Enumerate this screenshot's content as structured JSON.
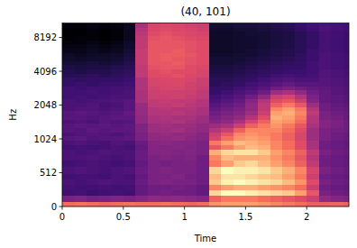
{
  "chart_data": {
    "type": "heatmap",
    "title": "(40, 101)",
    "x_label": "Time",
    "y_label": "Hz",
    "log": "y",
    "xlim": [
      0,
      2.345
    ],
    "ylim": [
      0,
      11025
    ],
    "xticks": [
      0,
      0.5,
      1,
      1.5,
      2
    ],
    "yticks": [
      0,
      512,
      1024,
      2048,
      4096,
      8192
    ],
    "x_edges": [
      0,
      0.1,
      0.2,
      0.3,
      0.4,
      0.5,
      0.6,
      0.7,
      0.8,
      0.9,
      1.0,
      1.1,
      1.2,
      1.3,
      1.4,
      1.5,
      1.6,
      1.7,
      1.8,
      1.9,
      2.0,
      2.1,
      2.2,
      2.3,
      2.345
    ],
    "y_edges": [
      0,
      83,
      166,
      250,
      333,
      416,
      499,
      583,
      666,
      749,
      832,
      915,
      999,
      1088,
      1186,
      1291,
      1407,
      1533,
      1671,
      1821,
      1984,
      2161,
      2355,
      2566,
      2796,
      3047,
      3318,
      3616,
      3940,
      4293,
      4678,
      5094,
      5551,
      6050,
      6593,
      7184,
      7822,
      8525,
      9290,
      10125,
      11025
    ],
    "cells": [
      [
        54,
        30,
        20,
        21,
        22,
        20,
        22,
        20,
        22,
        22,
        20,
        22,
        24,
        22,
        24,
        24,
        22,
        24,
        24,
        22,
        22,
        22,
        20,
        20,
        20,
        18,
        18,
        16,
        15,
        14,
        12,
        11,
        10,
        8,
        7,
        6,
        5,
        5,
        5,
        6
      ],
      [
        55,
        31,
        21,
        20,
        21,
        21,
        23,
        21,
        22,
        21,
        21,
        23,
        25,
        23,
        23,
        25,
        23,
        24,
        25,
        23,
        22,
        21,
        21,
        20,
        19,
        19,
        17,
        16,
        14,
        13,
        12,
        10,
        9,
        8,
        7,
        6,
        6,
        5,
        5,
        6
      ],
      [
        54,
        29,
        19,
        20,
        22,
        21,
        22,
        22,
        23,
        22,
        20,
        22,
        23,
        24,
        25,
        24,
        22,
        23,
        24,
        23,
        23,
        22,
        20,
        21,
        20,
        18,
        18,
        17,
        15,
        14,
        13,
        11,
        10,
        9,
        8,
        7,
        6,
        6,
        6,
        7
      ],
      [
        53,
        30,
        20,
        21,
        23,
        20,
        21,
        21,
        22,
        23,
        21,
        21,
        24,
        23,
        24,
        25,
        24,
        24,
        23,
        22,
        21,
        22,
        21,
        20,
        20,
        19,
        18,
        16,
        15,
        14,
        12,
        11,
        10,
        8,
        7,
        6,
        5,
        5,
        5,
        6
      ],
      [
        54,
        31,
        21,
        20,
        22,
        22,
        22,
        20,
        21,
        22,
        22,
        23,
        24,
        22,
        25,
        24,
        23,
        25,
        24,
        23,
        22,
        23,
        22,
        21,
        21,
        19,
        18,
        17,
        16,
        15,
        13,
        12,
        11,
        9,
        8,
        7,
        6,
        6,
        6,
        7
      ],
      [
        55,
        30,
        20,
        21,
        22,
        21,
        23,
        21,
        22,
        22,
        21,
        22,
        25,
        24,
        25,
        25,
        24,
        25,
        26,
        24,
        24,
        24,
        22,
        22,
        21,
        20,
        19,
        18,
        17,
        16,
        15,
        14,
        13,
        12,
        11,
        10,
        9,
        9,
        9,
        9
      ],
      [
        54,
        32,
        26,
        26,
        27,
        26,
        27,
        26,
        27,
        27,
        26,
        27,
        30,
        30,
        31,
        31,
        34,
        34,
        35,
        35,
        35,
        38,
        38,
        38,
        39,
        39,
        39,
        42,
        42,
        42,
        43,
        43,
        43,
        43,
        42,
        42,
        42,
        41,
        40,
        38
      ],
      [
        54,
        34,
        28,
        28,
        30,
        30,
        30,
        30,
        30,
        32,
        32,
        32,
        34,
        34,
        36,
        36,
        38,
        38,
        40,
        40,
        42,
        42,
        44,
        44,
        45,
        46,
        46,
        48,
        48,
        49,
        50,
        50,
        50,
        50,
        50,
        50,
        49,
        48,
        47,
        46
      ],
      [
        55,
        33,
        29,
        28,
        31,
        30,
        31,
        29,
        31,
        32,
        31,
        33,
        34,
        35,
        36,
        37,
        38,
        39,
        40,
        41,
        42,
        43,
        44,
        45,
        46,
        46,
        47,
        48,
        49,
        50,
        50,
        51,
        51,
        50,
        50,
        50,
        50,
        49,
        48,
        47
      ],
      [
        54,
        34,
        28,
        29,
        30,
        31,
        30,
        30,
        30,
        31,
        32,
        32,
        35,
        34,
        37,
        36,
        39,
        38,
        41,
        40,
        43,
        42,
        45,
        44,
        46,
        47,
        47,
        49,
        48,
        50,
        51,
        50,
        51,
        51,
        50,
        50,
        49,
        48,
        47,
        46
      ],
      [
        53,
        33,
        28,
        28,
        30,
        29,
        30,
        30,
        31,
        32,
        31,
        32,
        33,
        34,
        35,
        36,
        37,
        38,
        39,
        40,
        41,
        42,
        43,
        44,
        45,
        45,
        46,
        47,
        48,
        48,
        49,
        49,
        50,
        49,
        49,
        49,
        48,
        47,
        46,
        45
      ],
      [
        54,
        32,
        26,
        26,
        28,
        28,
        28,
        28,
        28,
        30,
        30,
        30,
        32,
        32,
        34,
        34,
        36,
        36,
        38,
        38,
        40,
        40,
        42,
        42,
        43,
        44,
        44,
        46,
        46,
        47,
        48,
        48,
        48,
        48,
        48,
        48,
        47,
        46,
        45,
        44
      ],
      [
        60,
        52,
        70,
        58,
        68,
        66,
        70,
        56,
        58,
        64,
        50,
        56,
        46,
        44,
        40,
        36,
        32,
        30,
        28,
        26,
        24,
        22,
        20,
        18,
        18,
        16,
        16,
        15,
        14,
        13,
        12,
        12,
        11,
        10,
        10,
        10,
        10,
        10,
        11,
        12
      ],
      [
        62,
        56,
        76,
        62,
        74,
        72,
        76,
        62,
        66,
        70,
        56,
        62,
        54,
        50,
        44,
        38,
        34,
        32,
        30,
        28,
        26,
        24,
        22,
        20,
        18,
        17,
        16,
        15,
        14,
        13,
        12,
        12,
        11,
        10,
        10,
        10,
        10,
        10,
        11,
        12
      ],
      [
        62,
        56,
        76,
        64,
        76,
        72,
        74,
        68,
        64,
        72,
        62,
        66,
        60,
        58,
        52,
        44,
        38,
        34,
        32,
        30,
        28,
        26,
        24,
        22,
        20,
        18,
        17,
        16,
        15,
        14,
        13,
        12,
        12,
        11,
        11,
        11,
        11,
        11,
        12,
        13
      ],
      [
        62,
        56,
        74,
        64,
        74,
        70,
        74,
        70,
        64,
        72,
        66,
        64,
        62,
        60,
        58,
        52,
        46,
        40,
        36,
        34,
        34,
        32,
        28,
        24,
        22,
        20,
        18,
        17,
        16,
        15,
        14,
        13,
        12,
        12,
        11,
        11,
        11,
        12,
        12,
        13
      ],
      [
        60,
        54,
        72,
        62,
        72,
        68,
        72,
        66,
        64,
        68,
        64,
        62,
        60,
        58,
        58,
        56,
        52,
        48,
        44,
        42,
        42,
        40,
        34,
        28,
        24,
        22,
        20,
        18,
        17,
        16,
        15,
        14,
        13,
        13,
        12,
        12,
        12,
        12,
        13,
        14
      ],
      [
        58,
        52,
        70,
        60,
        70,
        66,
        68,
        62,
        60,
        62,
        58,
        58,
        56,
        56,
        58,
        60,
        62,
        64,
        62,
        58,
        52,
        48,
        44,
        36,
        28,
        24,
        22,
        20,
        18,
        17,
        16,
        15,
        14,
        14,
        13,
        13,
        13,
        13,
        14,
        15
      ],
      [
        56,
        50,
        68,
        58,
        66,
        62,
        64,
        58,
        56,
        58,
        54,
        54,
        52,
        52,
        54,
        56,
        60,
        62,
        64,
        62,
        56,
        50,
        46,
        38,
        30,
        26,
        23,
        21,
        19,
        18,
        17,
        16,
        15,
        15,
        14,
        14,
        14,
        14,
        15,
        16
      ],
      [
        54,
        48,
        62,
        54,
        60,
        56,
        58,
        52,
        50,
        52,
        48,
        48,
        46,
        46,
        48,
        50,
        54,
        56,
        58,
        56,
        50,
        44,
        40,
        34,
        28,
        24,
        22,
        20,
        19,
        18,
        18,
        17,
        17,
        16,
        16,
        16,
        16,
        16,
        17,
        18
      ],
      [
        52,
        44,
        50,
        44,
        48,
        44,
        46,
        42,
        40,
        42,
        38,
        38,
        36,
        36,
        36,
        38,
        40,
        40,
        42,
        40,
        36,
        32,
        30,
        28,
        26,
        24,
        22,
        21,
        20,
        20,
        20,
        19,
        19,
        19,
        18,
        18,
        18,
        18,
        19,
        20
      ],
      [
        52,
        34,
        30,
        28,
        30,
        28,
        30,
        28,
        28,
        30,
        28,
        28,
        30,
        30,
        30,
        32,
        32,
        30,
        30,
        28,
        28,
        26,
        26,
        26,
        25,
        24,
        24,
        23,
        23,
        22,
        22,
        22,
        22,
        21,
        21,
        21,
        21,
        21,
        22,
        22
      ],
      [
        53,
        32,
        28,
        27,
        28,
        27,
        28,
        27,
        27,
        28,
        27,
        27,
        28,
        28,
        29,
        30,
        30,
        29,
        28,
        27,
        26,
        25,
        25,
        24,
        24,
        23,
        23,
        22,
        22,
        21,
        21,
        21,
        21,
        20,
        20,
        20,
        20,
        20,
        21,
        21
      ],
      [
        52,
        31,
        27,
        26,
        27,
        26,
        27,
        26,
        26,
        27,
        26,
        26,
        27,
        27,
        28,
        28,
        28,
        27,
        27,
        26,
        25,
        24,
        24,
        23,
        23,
        22,
        22,
        21,
        21,
        20,
        20,
        20,
        20,
        19,
        19,
        19,
        19,
        19,
        20,
        20
      ]
    ]
  }
}
